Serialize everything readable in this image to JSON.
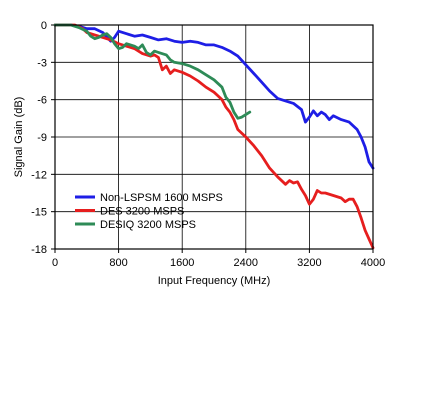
{
  "chart_data": {
    "type": "line",
    "xlabel": "Input Frequency (MHz)",
    "ylabel": "Signal Gain (dB)",
    "xlim": [
      0,
      4000
    ],
    "ylim": [
      -18,
      0
    ],
    "x_ticks": [
      "0",
      "800",
      "1600",
      "2400",
      "3200",
      "4000"
    ],
    "y_ticks": [
      "0",
      "-3",
      "-6",
      "-9",
      "-12",
      "-15",
      "-18"
    ],
    "grid": true,
    "legend_position": "lower-left",
    "series": [
      {
        "name": "Non-LSPSM 1600 MSPS",
        "color": "#1e1ee6",
        "points": [
          [
            0,
            0
          ],
          [
            200,
            0
          ],
          [
            300,
            -0.1
          ],
          [
            400,
            -0.3
          ],
          [
            500,
            -0.3
          ],
          [
            600,
            -0.6
          ],
          [
            700,
            -1.3
          ],
          [
            750,
            -1.0
          ],
          [
            800,
            -0.5
          ],
          [
            900,
            -0.7
          ],
          [
            1000,
            -0.9
          ],
          [
            1100,
            -0.8
          ],
          [
            1200,
            -1.0
          ],
          [
            1300,
            -1.2
          ],
          [
            1400,
            -1.1
          ],
          [
            1500,
            -1.3
          ],
          [
            1600,
            -1.4
          ],
          [
            1700,
            -1.3
          ],
          [
            1800,
            -1.4
          ],
          [
            1900,
            -1.6
          ],
          [
            2000,
            -1.6
          ],
          [
            2100,
            -1.8
          ],
          [
            2200,
            -2.1
          ],
          [
            2300,
            -2.5
          ],
          [
            2400,
            -3.2
          ],
          [
            2500,
            -3.9
          ],
          [
            2600,
            -4.6
          ],
          [
            2700,
            -5.3
          ],
          [
            2800,
            -5.9
          ],
          [
            2900,
            -6.1
          ],
          [
            3000,
            -6.3
          ],
          [
            3100,
            -6.8
          ],
          [
            3150,
            -7.8
          ],
          [
            3200,
            -7.4
          ],
          [
            3250,
            -6.9
          ],
          [
            3300,
            -7.3
          ],
          [
            3350,
            -7.0
          ],
          [
            3400,
            -7.2
          ],
          [
            3450,
            -7.6
          ],
          [
            3500,
            -7.3
          ],
          [
            3600,
            -7.6
          ],
          [
            3700,
            -7.8
          ],
          [
            3800,
            -8.4
          ],
          [
            3850,
            -9.0
          ],
          [
            3900,
            -9.8
          ],
          [
            3950,
            -11.0
          ],
          [
            4000,
            -11.5
          ]
        ]
      },
      {
        "name": "DES 3200 MSPS",
        "color": "#e61e1e",
        "points": [
          [
            0,
            0
          ],
          [
            250,
            0
          ],
          [
            350,
            -0.3
          ],
          [
            400,
            -0.6
          ],
          [
            500,
            -0.8
          ],
          [
            600,
            -1.0
          ],
          [
            700,
            -1.2
          ],
          [
            800,
            -1.5
          ],
          [
            900,
            -1.7
          ],
          [
            1000,
            -1.9
          ],
          [
            1100,
            -2.3
          ],
          [
            1200,
            -2.5
          ],
          [
            1250,
            -2.4
          ],
          [
            1300,
            -2.6
          ],
          [
            1350,
            -3.6
          ],
          [
            1400,
            -3.3
          ],
          [
            1450,
            -3.9
          ],
          [
            1500,
            -3.6
          ],
          [
            1600,
            -3.8
          ],
          [
            1700,
            -4.1
          ],
          [
            1800,
            -4.5
          ],
          [
            1900,
            -5.0
          ],
          [
            2000,
            -5.4
          ],
          [
            2050,
            -5.7
          ],
          [
            2100,
            -6.0
          ],
          [
            2150,
            -6.6
          ],
          [
            2200,
            -7.0
          ],
          [
            2250,
            -7.6
          ],
          [
            2300,
            -8.4
          ],
          [
            2400,
            -9.0
          ],
          [
            2500,
            -9.7
          ],
          [
            2600,
            -10.5
          ],
          [
            2700,
            -11.5
          ],
          [
            2800,
            -12.2
          ],
          [
            2900,
            -12.8
          ],
          [
            2950,
            -12.5
          ],
          [
            3000,
            -12.7
          ],
          [
            3050,
            -12.6
          ],
          [
            3100,
            -13.2
          ],
          [
            3150,
            -13.7
          ],
          [
            3200,
            -14.4
          ],
          [
            3250,
            -14.0
          ],
          [
            3300,
            -13.3
          ],
          [
            3350,
            -13.5
          ],
          [
            3400,
            -13.5
          ],
          [
            3500,
            -13.7
          ],
          [
            3600,
            -13.9
          ],
          [
            3650,
            -14.2
          ],
          [
            3700,
            -14.0
          ],
          [
            3750,
            -14.0
          ],
          [
            3800,
            -14.6
          ],
          [
            3850,
            -15.5
          ],
          [
            3900,
            -16.5
          ],
          [
            3950,
            -17.2
          ],
          [
            4000,
            -17.9
          ]
        ]
      },
      {
        "name": "DESIQ 3200 MSPS",
        "color": "#2e8b57",
        "points": [
          [
            0,
            0
          ],
          [
            200,
            0
          ],
          [
            300,
            -0.2
          ],
          [
            400,
            -0.5
          ],
          [
            450,
            -0.9
          ],
          [
            500,
            -1.1
          ],
          [
            550,
            -1.0
          ],
          [
            600,
            -0.8
          ],
          [
            650,
            -0.7
          ],
          [
            700,
            -1.0
          ],
          [
            750,
            -1.5
          ],
          [
            800,
            -1.9
          ],
          [
            850,
            -1.8
          ],
          [
            900,
            -1.5
          ],
          [
            1000,
            -1.7
          ],
          [
            1050,
            -1.9
          ],
          [
            1100,
            -1.6
          ],
          [
            1150,
            -2.2
          ],
          [
            1200,
            -2.4
          ],
          [
            1250,
            -2.1
          ],
          [
            1300,
            -2.2
          ],
          [
            1400,
            -2.4
          ],
          [
            1450,
            -2.8
          ],
          [
            1500,
            -3.0
          ],
          [
            1600,
            -3.1
          ],
          [
            1700,
            -3.3
          ],
          [
            1800,
            -3.6
          ],
          [
            1900,
            -4.0
          ],
          [
            2000,
            -4.4
          ],
          [
            2100,
            -5.0
          ],
          [
            2150,
            -5.8
          ],
          [
            2200,
            -6.2
          ],
          [
            2250,
            -7.0
          ],
          [
            2300,
            -7.5
          ],
          [
            2350,
            -7.4
          ],
          [
            2400,
            -7.2
          ],
          [
            2450,
            -7.0
          ]
        ]
      }
    ]
  }
}
